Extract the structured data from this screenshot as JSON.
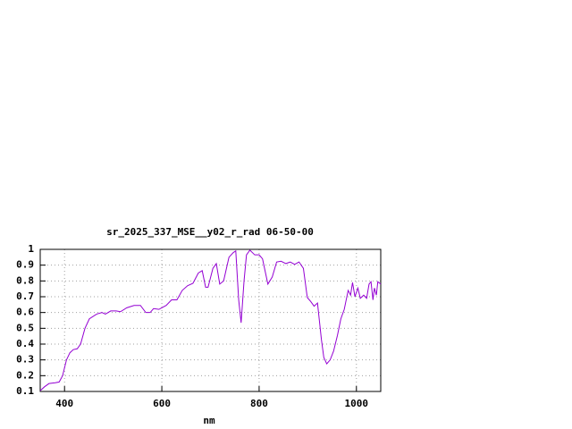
{
  "chart_data": {
    "type": "line",
    "title": "sr_2025_337_MSE__y02_r_rad 06-50-00",
    "x_label": "nm",
    "x": [
      350,
      359,
      368,
      381,
      389,
      396,
      404,
      411,
      418,
      426,
      433,
      442,
      451,
      466,
      477,
      484,
      495,
      506,
      515,
      528,
      543,
      556,
      567,
      576,
      583,
      594,
      609,
      620,
      631,
      642,
      653,
      664,
      675,
      683,
      690,
      695,
      705,
      712,
      719,
      727,
      738,
      747,
      752,
      758,
      763,
      769,
      774,
      781,
      791,
      800,
      807,
      818,
      827,
      836,
      845,
      855,
      864,
      873,
      882,
      891,
      899,
      906,
      913,
      920,
      928,
      933,
      939,
      946,
      953,
      961,
      968,
      975,
      983,
      988,
      992,
      997,
      1003,
      1008,
      1015,
      1021,
      1026,
      1030,
      1034,
      1037,
      1041,
      1044,
      1050
    ],
    "series": [
      {
        "color": "#9400d3",
        "values": [
          0.105,
          0.13,
          0.15,
          0.155,
          0.16,
          0.2,
          0.3,
          0.345,
          0.365,
          0.37,
          0.4,
          0.5,
          0.56,
          0.59,
          0.6,
          0.59,
          0.61,
          0.61,
          0.605,
          0.63,
          0.645,
          0.645,
          0.6,
          0.6,
          0.625,
          0.62,
          0.645,
          0.68,
          0.68,
          0.74,
          0.77,
          0.785,
          0.85,
          0.865,
          0.76,
          0.76,
          0.88,
          0.91,
          0.78,
          0.8,
          0.95,
          0.98,
          0.99,
          0.68,
          0.535,
          0.8,
          0.965,
          0.995,
          0.965,
          0.965,
          0.94,
          0.78,
          0.825,
          0.92,
          0.925,
          0.91,
          0.92,
          0.905,
          0.92,
          0.88,
          0.695,
          0.67,
          0.64,
          0.66,
          0.43,
          0.315,
          0.275,
          0.3,
          0.355,
          0.455,
          0.56,
          0.62,
          0.74,
          0.71,
          0.79,
          0.7,
          0.755,
          0.69,
          0.71,
          0.69,
          0.78,
          0.795,
          0.68,
          0.755,
          0.71,
          0.795,
          0.78
        ]
      }
    ],
    "xlim": [
      350,
      1050
    ],
    "ylim": [
      0.1,
      1
    ],
    "xticks": [
      400,
      600,
      800,
      1000
    ],
    "yticks": [
      0.1,
      0.2,
      0.3,
      0.4,
      0.5,
      0.6,
      0.7,
      0.8,
      0.9,
      1
    ],
    "grid": true
  }
}
